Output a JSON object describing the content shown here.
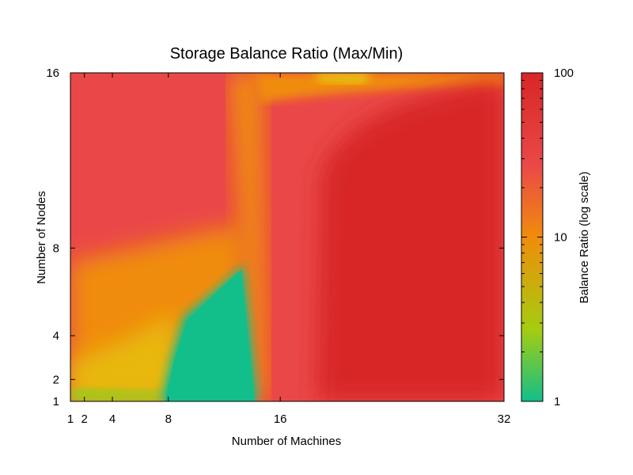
{
  "chart_data": {
    "type": "heatmap",
    "title": "Storage Balance Ratio (Max/Min)",
    "xlabel": "Number of Machines",
    "ylabel": "Number of Nodes",
    "xlim": [
      1,
      32
    ],
    "ylim": [
      1,
      16
    ],
    "x_ticks": [
      1,
      2,
      4,
      8,
      16,
      32
    ],
    "y_ticks": [
      1,
      2,
      4,
      8,
      16
    ],
    "colorbar": {
      "label": "Balance Ratio (log scale)",
      "scale": "log",
      "range": [
        1,
        100
      ],
      "ticks": [
        1,
        10,
        100
      ],
      "colors": [
        "#12bf8a",
        "#a6cc10",
        "#f08c0c",
        "#ea4848",
        "#d82626"
      ]
    },
    "grid": false,
    "legend": "right colorbar",
    "regions": [
      {
        "description": "low ratio region",
        "x_range": [
          8,
          15
        ],
        "y_range": [
          1,
          7
        ],
        "value": 1
      },
      {
        "description": "highest ratio region",
        "x_range": [
          19,
          32
        ],
        "y_range": [
          1,
          15
        ],
        "value": 100
      }
    ]
  }
}
